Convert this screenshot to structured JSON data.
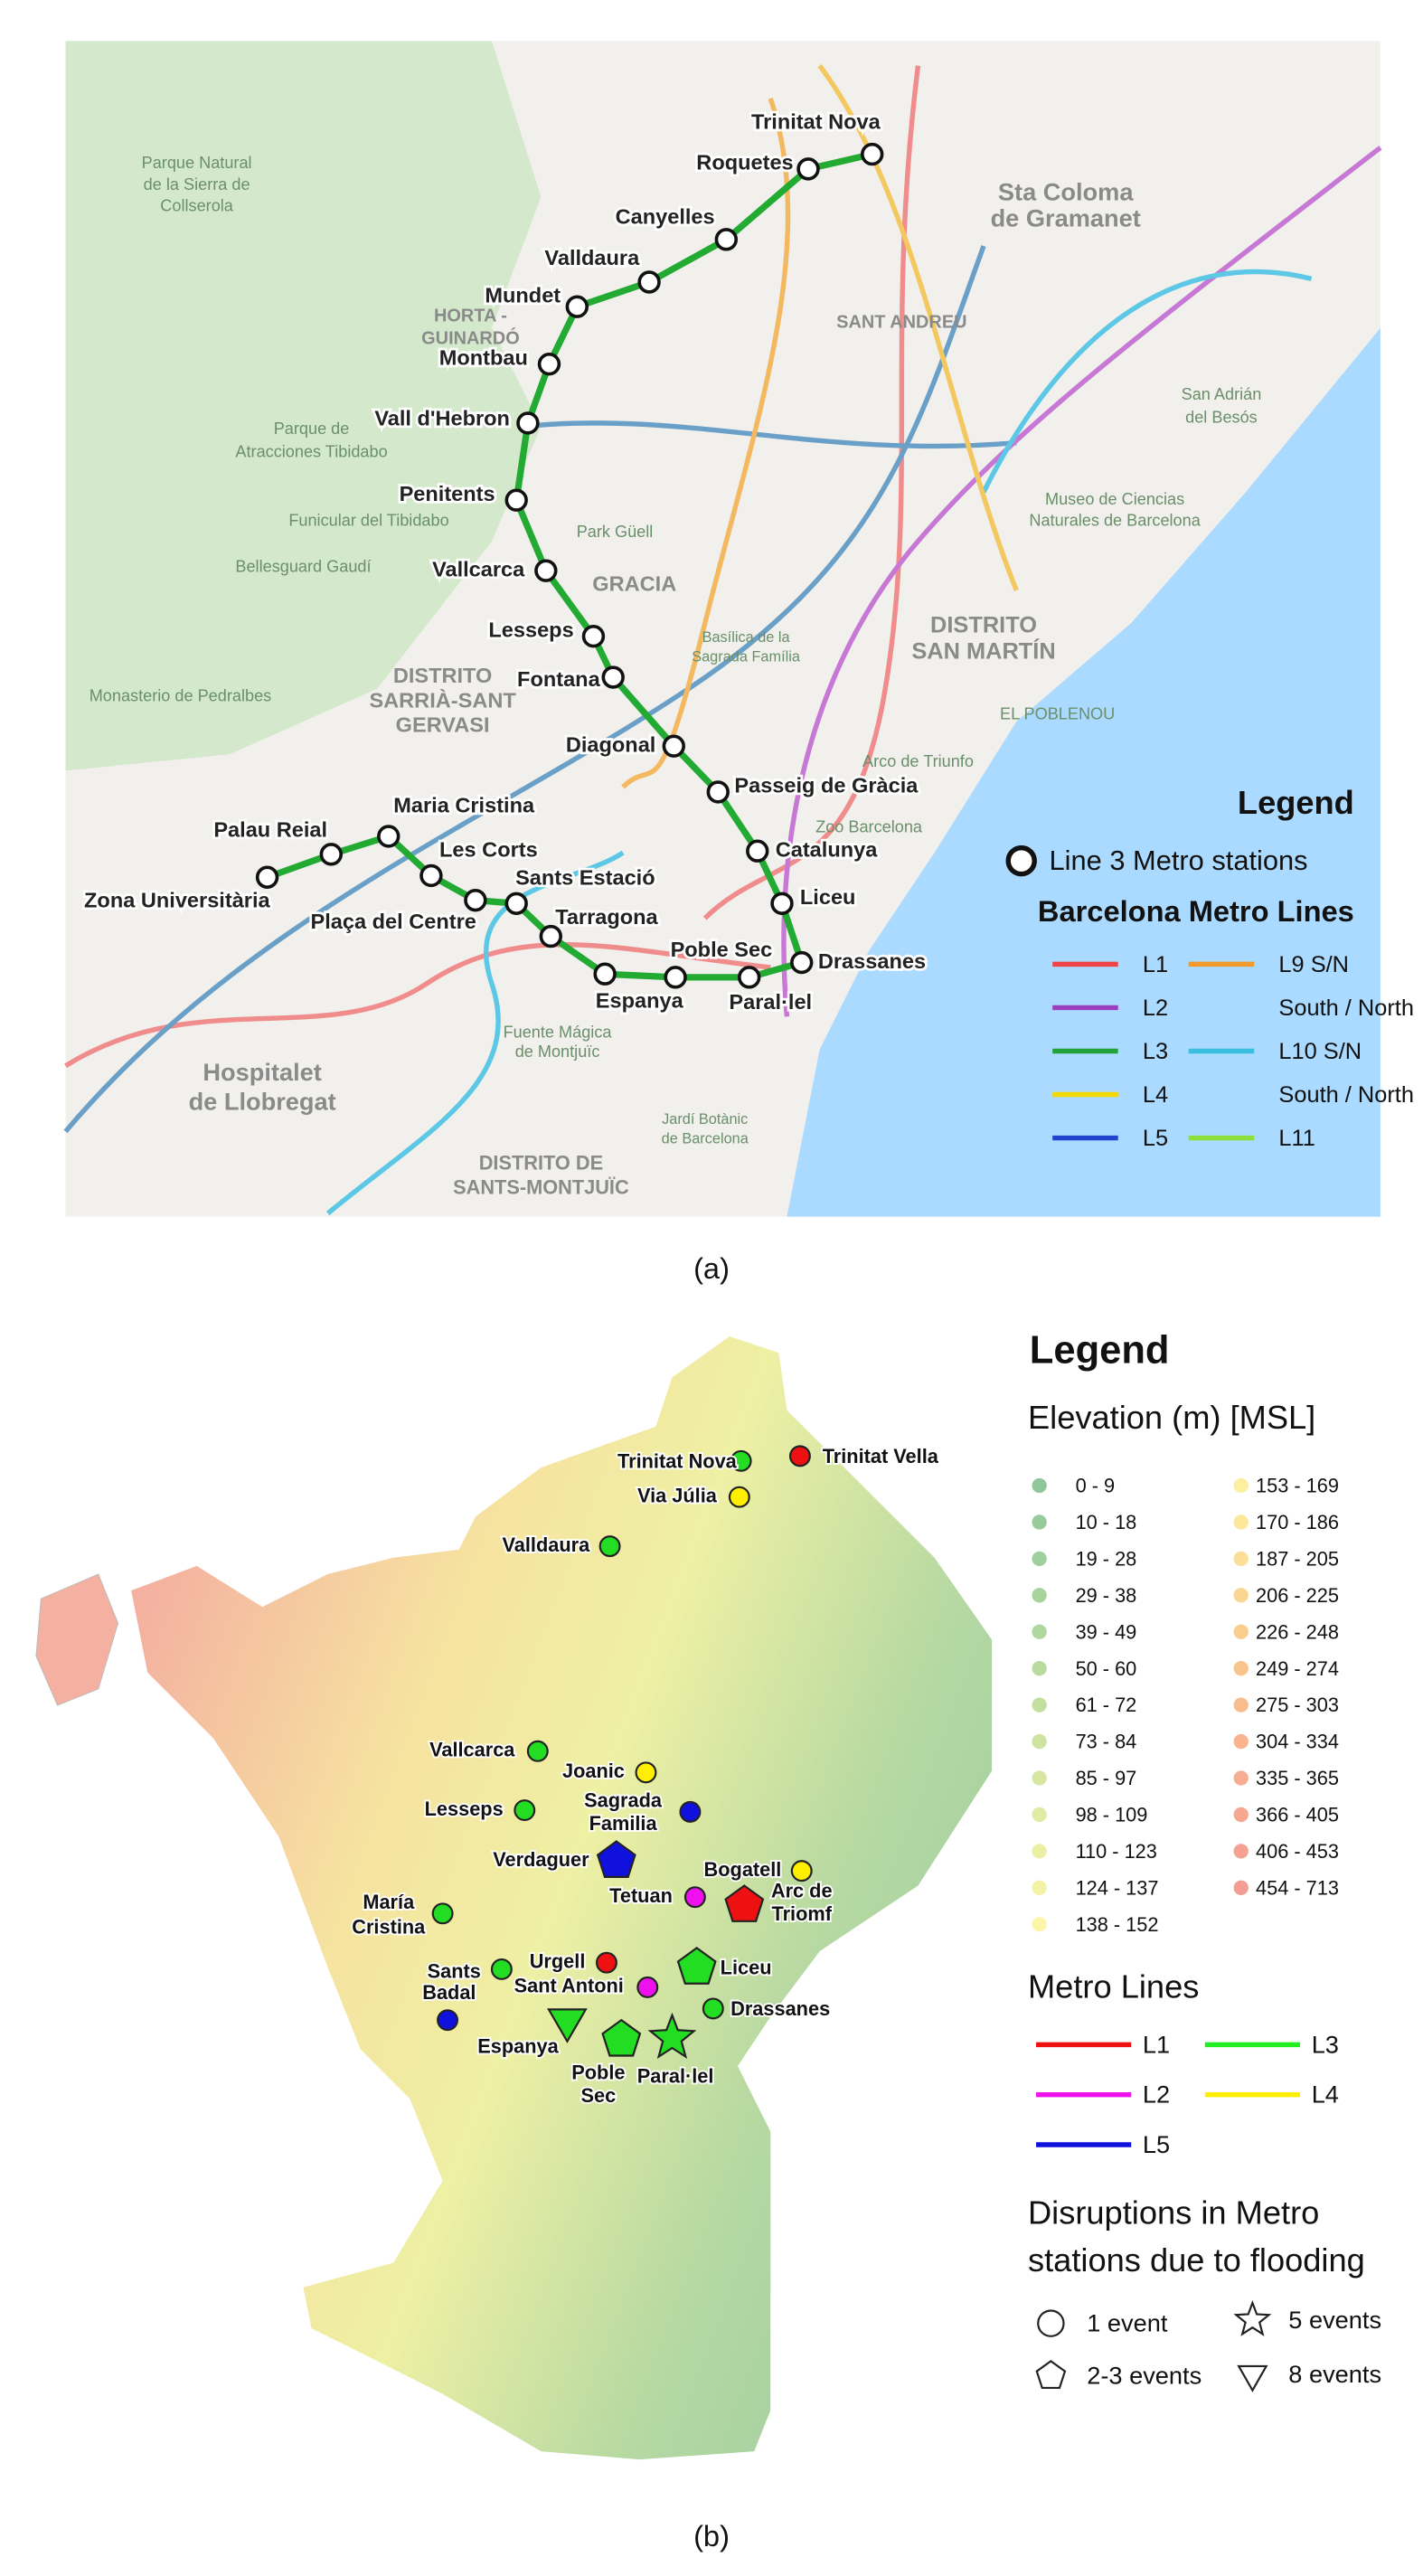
{
  "panel_a": {
    "label": "(a)",
    "route_color": "#22aa33",
    "stations": [
      "Trinitat Nova",
      "Roquetes",
      "Canyelles",
      "Valldaura",
      "Mundet",
      "Montbau",
      "Vall d'Hebron",
      "Penitents",
      "Vallcarca",
      "Lesseps",
      "Fontana",
      "Diagonal",
      "Passeig de Gràcia",
      "Catalunya",
      "Liceu",
      "Drassanes",
      "Paral·lel",
      "Poble Sec",
      "Espanya",
      "Tarragona",
      "Sants Estació",
      "Plaça del Centre",
      "Les Corts",
      "Maria Cristina",
      "Palau Reial",
      "Zona Universitària"
    ],
    "map_labels": [
      "Parque Natural",
      "de la Sierra de",
      "Collserola",
      "Sta Coloma",
      "de Gramanet",
      "SANT ANDREU",
      "HORTA -",
      "GUINARDÓ",
      "Parque de",
      "Atracciones Tibidabo",
      "Funicular del Tibidabo",
      "Bellesguard Gaudí",
      "Park Güell",
      "GRACIA",
      "DISTRITO",
      "SARRIÀ-SANT",
      "GERVASI",
      "Monasterio de Pedralbes",
      "Basílica de la",
      "Sagrada Família",
      "DISTRITO",
      "SAN MARTÍN",
      "EL POBLENOU",
      "Zoo Barcelona",
      "Arco de Triunfo",
      "San Adrián",
      "del Besós",
      "Museo de Ciencias",
      "Naturales de Barcelona",
      "Hospitalet",
      "de Llobregat",
      "Fuente Mágica",
      "de Montjuïc",
      "Jardí Botànic",
      "de Barcelona",
      "DISTRITO DE",
      "SANTS-MONTJUÏC"
    ],
    "legend": {
      "title": "Legend",
      "station_item": "Line 3 Metro stations",
      "lines_title": "Barcelona Metro Lines",
      "lines": [
        {
          "name": "L1",
          "color": "#ee4444"
        },
        {
          "name": "L2",
          "color": "#9b3fc1"
        },
        {
          "name": "L3",
          "color": "#22a33a"
        },
        {
          "name": "L4",
          "color": "#f5d800"
        },
        {
          "name": "L5",
          "color": "#2244cc"
        },
        {
          "name": "L9 S/N",
          "color": "#f39a2b"
        },
        {
          "name": "South / North"
        },
        {
          "name": "L10 S/N",
          "color": "#3bbfe0"
        },
        {
          "name": "South / North"
        },
        {
          "name": "L11",
          "color": "#8ddf3a"
        }
      ]
    }
  },
  "panel_b": {
    "label": "(b)",
    "stations": [
      {
        "label": [
          "Trinitat Nova"
        ],
        "color": "#22dd22",
        "marker": "circle"
      },
      {
        "label": [
          "Trinitat Vella"
        ],
        "color": "#ee1111",
        "marker": "circle"
      },
      {
        "label": [
          "Via Júlia"
        ],
        "color": "#ffee00",
        "marker": "circle"
      },
      {
        "label": [
          "Valldaura"
        ],
        "color": "#22dd22",
        "marker": "circle"
      },
      {
        "label": [
          "Vallcarca"
        ],
        "color": "#22dd22",
        "marker": "circle"
      },
      {
        "label": [
          "Joanic"
        ],
        "color": "#ffee00",
        "marker": "circle"
      },
      {
        "label": [
          "Lesseps"
        ],
        "color": "#22dd22",
        "marker": "circle"
      },
      {
        "label": [
          "Sagrada",
          "Familia"
        ],
        "color": "#1111dd",
        "marker": "circle"
      },
      {
        "label": [
          "Verdaguer"
        ],
        "color": "#1111dd",
        "marker": "pentagon"
      },
      {
        "label": [
          "Bogatell"
        ],
        "color": "#ffee00",
        "marker": "circle"
      },
      {
        "label": [
          "Tetuan"
        ],
        "color": "#ee11ee",
        "marker": "circle"
      },
      {
        "label": [
          "Arc de",
          "Triomf"
        ],
        "color": "#ee1111",
        "marker": "pentagon"
      },
      {
        "label": [
          "María",
          "Cristina"
        ],
        "color": "#22dd22",
        "marker": "circle"
      },
      {
        "label": [
          "Urgell"
        ],
        "color": "#ee1111",
        "marker": "circle"
      },
      {
        "label": [
          "Liceu"
        ],
        "color": "#22dd22",
        "marker": "pentagon"
      },
      {
        "label": [
          "Sants"
        ],
        "color": "#22dd22",
        "marker": "circle"
      },
      {
        "label": [
          "Badal"
        ],
        "color": "#1111dd",
        "marker": "circle"
      },
      {
        "label": [
          "Sant Antoni"
        ],
        "color": "#ee11ee",
        "marker": "circle"
      },
      {
        "label": [
          "Drassanes"
        ],
        "color": "#22dd22",
        "marker": "circle"
      },
      {
        "label": [
          "Espanya"
        ],
        "color": "#22dd22",
        "marker": "triangle"
      },
      {
        "label": [
          "Poble",
          "Sec"
        ],
        "color": "#22dd22",
        "marker": "pentagon"
      },
      {
        "label": [
          "Paral·lel"
        ],
        "color": "#22dd22",
        "marker": "star"
      }
    ],
    "legend": {
      "title": "Legend",
      "elevation_title": "Elevation (m) [MSL]",
      "elevation": [
        {
          "range": "0 - 9",
          "color": "#8fc79a"
        },
        {
          "range": "10 - 18",
          "color": "#97cb9b"
        },
        {
          "range": "19 - 28",
          "color": "#9fcf9c"
        },
        {
          "range": "29 - 38",
          "color": "#a7d39d"
        },
        {
          "range": "39 - 49",
          "color": "#b0d79e"
        },
        {
          "range": "50 - 60",
          "color": "#b9db9f"
        },
        {
          "range": "61 - 72",
          "color": "#c3dfa0"
        },
        {
          "range": "73 - 84",
          "color": "#cde3a1"
        },
        {
          "range": "85 - 97",
          "color": "#d7e7a2"
        },
        {
          "range": "98 - 109",
          "color": "#e1eba3"
        },
        {
          "range": "110 - 123",
          "color": "#ebefa4"
        },
        {
          "range": "124 - 137",
          "color": "#f4f3a5"
        },
        {
          "range": "138 - 152",
          "color": "#fbf6a8"
        },
        {
          "range": "153 - 169",
          "color": "#fcef9f"
        },
        {
          "range": "170 - 186",
          "color": "#fce79a"
        },
        {
          "range": "187 - 205",
          "color": "#fcdf96"
        },
        {
          "range": "206 - 225",
          "color": "#fbd692"
        },
        {
          "range": "226 - 248",
          "color": "#fbcd8f"
        },
        {
          "range": "249 - 274",
          "color": "#fac48d"
        },
        {
          "range": "275 - 303",
          "color": "#f9bc8d"
        },
        {
          "range": "304 - 334",
          "color": "#f8b48e"
        },
        {
          "range": "335 - 365",
          "color": "#f7ad8f"
        },
        {
          "range": "366 - 405",
          "color": "#f6a790"
        },
        {
          "range": "406 - 453",
          "color": "#f5a292"
        },
        {
          "range": "454 - 713",
          "color": "#f49d94"
        }
      ],
      "lines_title": "Metro Lines",
      "lines": [
        {
          "name": "L1",
          "color": "#ee1111"
        },
        {
          "name": "L2",
          "color": "#ee11ee"
        },
        {
          "name": "L5",
          "color": "#1111dd"
        },
        {
          "name": "L3",
          "color": "#22ee22"
        },
        {
          "name": "L4",
          "color": "#ffee00"
        }
      ],
      "disruptions_title": [
        "Disruptions in Metro",
        "stations due to flooding"
      ],
      "disruptions": [
        {
          "label": "1 event",
          "marker": "circle"
        },
        {
          "label": "5 events",
          "marker": "star"
        },
        {
          "label": "2-3 events",
          "marker": "pentagon"
        },
        {
          "label": "8 events",
          "marker": "triangle"
        }
      ]
    }
  }
}
